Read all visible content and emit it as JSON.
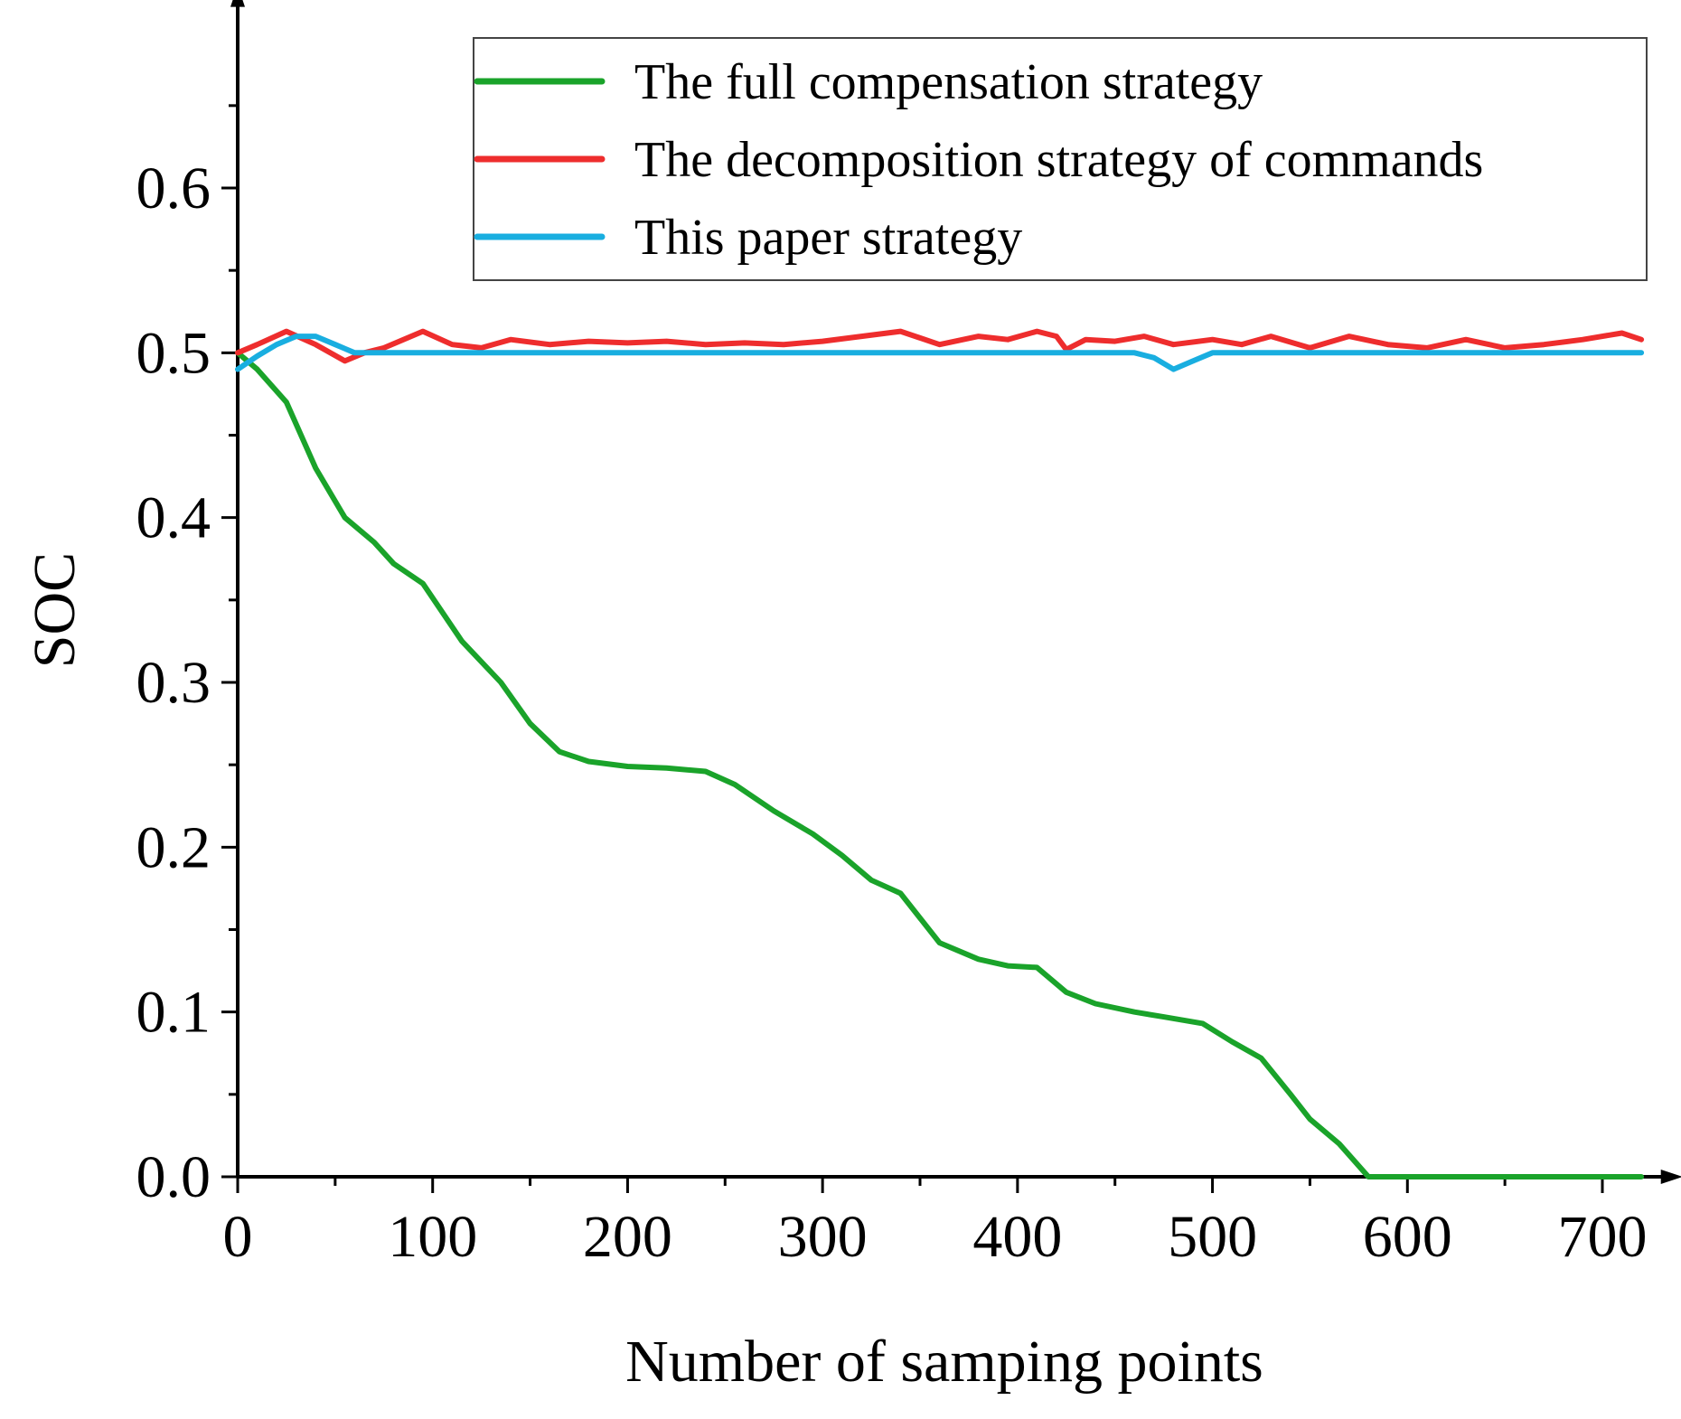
{
  "chart_data": {
    "type": "line",
    "title": "",
    "xlabel": "Number of samping points",
    "ylabel": "SOC",
    "xlim": [
      0,
      730
    ],
    "ylim": [
      0,
      0.7
    ],
    "xticks": [
      0,
      100,
      200,
      300,
      400,
      500,
      600,
      700
    ],
    "xtick_labels": [
      "0",
      "100",
      "200",
      "300",
      "400",
      "500",
      "600",
      "700"
    ],
    "yticks": [
      0.0,
      0.1,
      0.2,
      0.3,
      0.4,
      0.5,
      0.6
    ],
    "ytick_labels": [
      "0.0",
      "0.1",
      "0.2",
      "0.3",
      "0.4",
      "0.5",
      "0.6"
    ],
    "grid": false,
    "legend_position": "top-right",
    "series": [
      {
        "name": "The full compensation strategy",
        "color": "#1aa32a",
        "x": [
          0,
          10,
          25,
          40,
          55,
          70,
          80,
          95,
          115,
          135,
          150,
          165,
          180,
          200,
          220,
          240,
          255,
          275,
          295,
          310,
          325,
          340,
          360,
          380,
          395,
          410,
          425,
          440,
          460,
          475,
          495,
          510,
          525,
          540,
          550,
          565,
          580,
          600,
          650,
          700,
          720
        ],
        "values": [
          0.5,
          0.49,
          0.47,
          0.43,
          0.4,
          0.385,
          0.372,
          0.36,
          0.325,
          0.3,
          0.275,
          0.258,
          0.252,
          0.249,
          0.248,
          0.246,
          0.238,
          0.222,
          0.208,
          0.195,
          0.18,
          0.172,
          0.142,
          0.132,
          0.128,
          0.127,
          0.112,
          0.105,
          0.1,
          0.097,
          0.093,
          0.082,
          0.072,
          0.05,
          0.035,
          0.02,
          0.0,
          0.0,
          0.0,
          0.0,
          0.0
        ]
      },
      {
        "name": "The decomposition strategy of commands",
        "color": "#ee2d2d",
        "x": [
          0,
          10,
          25,
          40,
          55,
          65,
          75,
          95,
          110,
          125,
          140,
          160,
          180,
          200,
          220,
          240,
          260,
          280,
          300,
          320,
          340,
          360,
          380,
          395,
          410,
          420,
          425,
          435,
          450,
          465,
          480,
          500,
          515,
          530,
          550,
          570,
          590,
          610,
          630,
          650,
          670,
          690,
          710,
          720
        ],
        "values": [
          0.5,
          0.505,
          0.513,
          0.505,
          0.495,
          0.5,
          0.503,
          0.513,
          0.505,
          0.503,
          0.508,
          0.505,
          0.507,
          0.506,
          0.507,
          0.505,
          0.506,
          0.505,
          0.507,
          0.51,
          0.513,
          0.505,
          0.51,
          0.508,
          0.513,
          0.51,
          0.502,
          0.508,
          0.507,
          0.51,
          0.505,
          0.508,
          0.505,
          0.51,
          0.503,
          0.51,
          0.505,
          0.503,
          0.508,
          0.503,
          0.505,
          0.508,
          0.512,
          0.508
        ]
      },
      {
        "name": "This paper strategy",
        "color": "#19aee0",
        "x": [
          0,
          10,
          20,
          30,
          40,
          50,
          60,
          100,
          200,
          300,
          400,
          460,
          470,
          480,
          490,
          500,
          600,
          700,
          720
        ],
        "values": [
          0.49,
          0.498,
          0.505,
          0.51,
          0.51,
          0.505,
          0.5,
          0.5,
          0.5,
          0.5,
          0.5,
          0.5,
          0.497,
          0.49,
          0.495,
          0.5,
          0.5,
          0.5,
          0.5
        ]
      }
    ]
  }
}
